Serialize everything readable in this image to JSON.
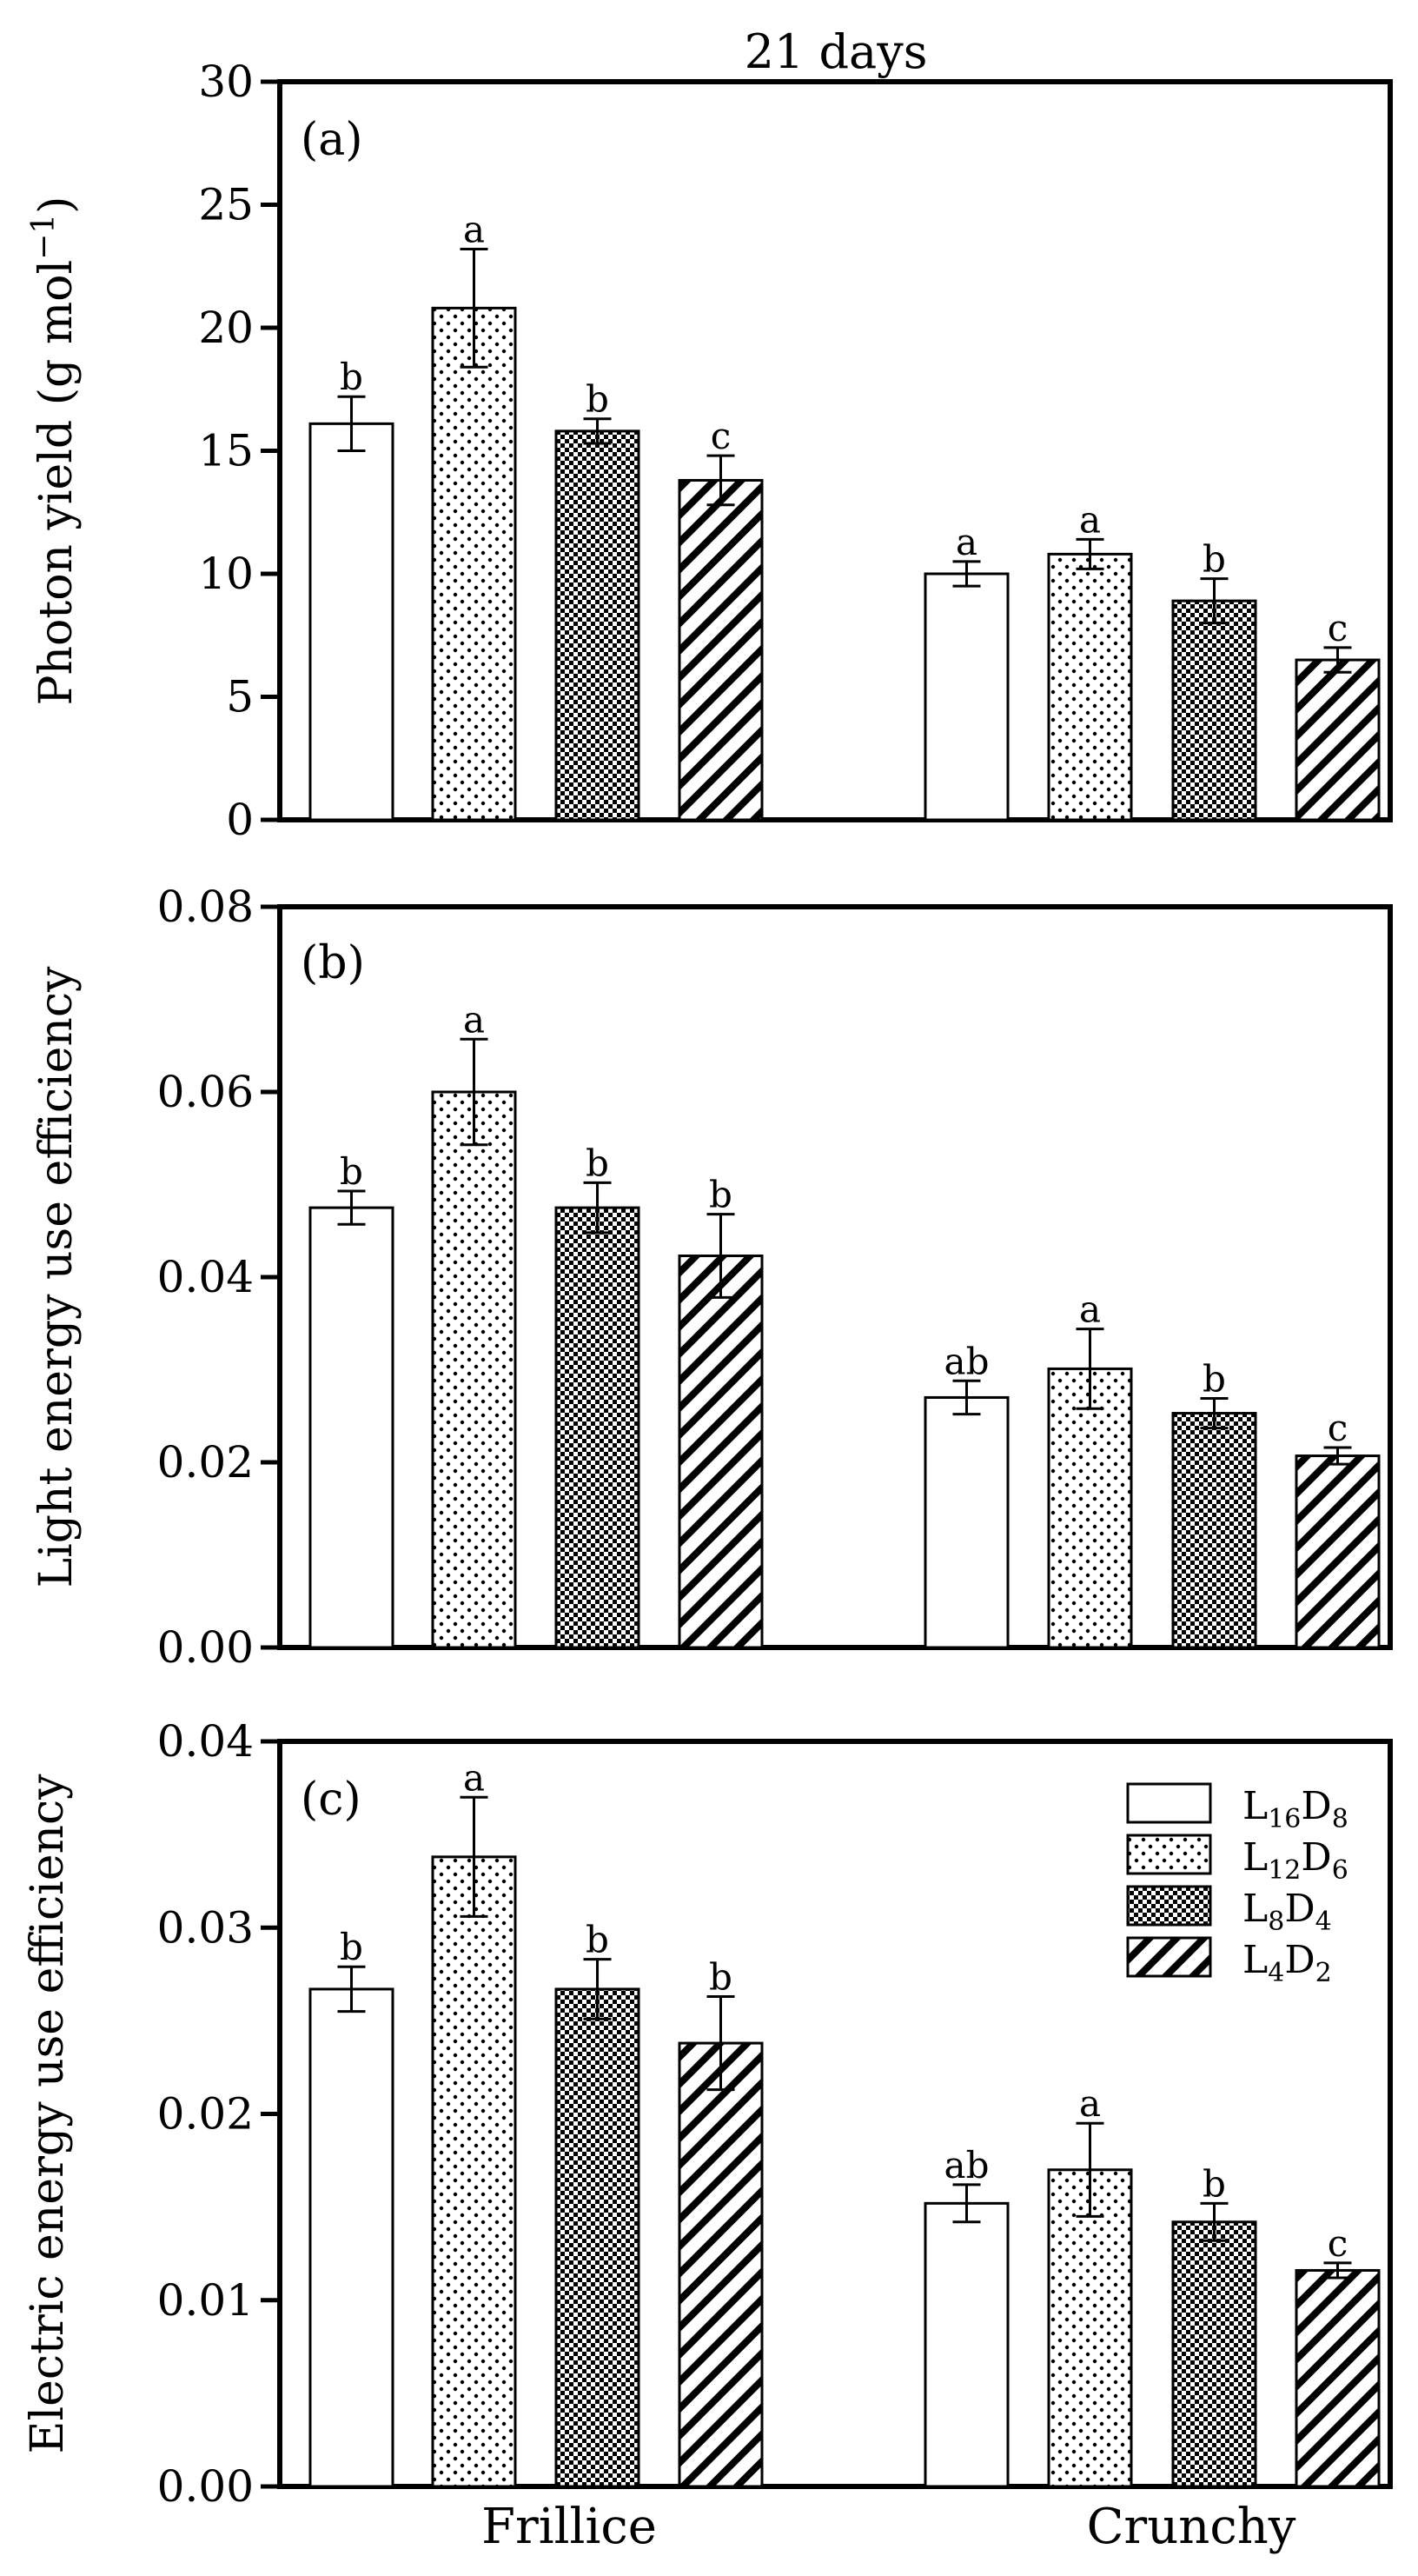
{
  "chart_data": {
    "type": "bar",
    "title": "21 days",
    "groups": [
      "Frillice",
      "Crunchy"
    ],
    "series": [
      {
        "name": "L16D8",
        "label_main": [
          "L",
          "D"
        ],
        "label_sub": [
          "16",
          "8"
        ],
        "pattern": "open"
      },
      {
        "name": "L12D6",
        "label_main": [
          "L",
          "D"
        ],
        "label_sub": [
          "12",
          "6"
        ],
        "pattern": "dots"
      },
      {
        "name": "L8D4",
        "label_main": [
          "L",
          "D"
        ],
        "label_sub": [
          "8",
          "4"
        ],
        "pattern": "checker"
      },
      {
        "name": "L4D2",
        "label_main": [
          "L",
          "D"
        ],
        "label_sub": [
          "4",
          "2"
        ],
        "pattern": "hatch"
      }
    ],
    "legend_location": "top-right of panel (c)",
    "panels": [
      {
        "id": "a",
        "panel_label": "(a)",
        "ylabel": "Photon yield (g mol",
        "ylabel_sup": "−1",
        "ylabel_end": ")",
        "ylim": [
          0,
          30
        ],
        "ticks": [
          0,
          5,
          10,
          15,
          20,
          25,
          30
        ],
        "tick_labels": [
          "0",
          "5",
          "10",
          "15",
          "20",
          "25",
          "30"
        ],
        "values": [
          [
            16.1,
            20.8,
            15.8,
            13.8
          ],
          [
            10.0,
            10.8,
            8.9,
            6.5
          ]
        ],
        "errors": [
          [
            1.1,
            2.4,
            0.5,
            1.0
          ],
          [
            0.5,
            0.6,
            0.9,
            0.5
          ]
        ],
        "letters": [
          [
            "b",
            "a",
            "b",
            "c"
          ],
          [
            "a",
            "a",
            "b",
            "c"
          ]
        ]
      },
      {
        "id": "b",
        "panel_label": "(b)",
        "ylabel": "Light energy use efficiency",
        "ylim": [
          0,
          0.08
        ],
        "ticks": [
          0,
          0.02,
          0.04,
          0.06,
          0.08
        ],
        "tick_labels": [
          "0.00",
          "0.02",
          "0.04",
          "0.06",
          "0.08"
        ],
        "values": [
          [
            0.0475,
            0.06,
            0.0475,
            0.0423
          ],
          [
            0.027,
            0.0301,
            0.0253,
            0.0207
          ]
        ],
        "errors": [
          [
            0.0018,
            0.0057,
            0.0027,
            0.0045
          ],
          [
            0.0018,
            0.0043,
            0.0016,
            0.0009
          ]
        ],
        "letters": [
          [
            "b",
            "a",
            "b",
            "b"
          ],
          [
            "ab",
            "a",
            "b",
            "c"
          ]
        ]
      },
      {
        "id": "c",
        "panel_label": "(c)",
        "ylabel": "Electric energy use efficiency",
        "ylim": [
          0,
          0.04
        ],
        "ticks": [
          0,
          0.01,
          0.02,
          0.03,
          0.04
        ],
        "tick_labels": [
          "0.00",
          "0.01",
          "0.02",
          "0.03",
          "0.04"
        ],
        "values": [
          [
            0.0267,
            0.0338,
            0.0267,
            0.0238
          ],
          [
            0.0152,
            0.017,
            0.0142,
            0.0116
          ]
        ],
        "errors": [
          [
            0.0012,
            0.0032,
            0.0016,
            0.0025
          ],
          [
            0.001,
            0.0025,
            0.001,
            0.0004
          ]
        ],
        "letters": [
          [
            "b",
            "a",
            "b",
            "b"
          ],
          [
            "ab",
            "a",
            "b",
            "c"
          ]
        ]
      }
    ]
  }
}
